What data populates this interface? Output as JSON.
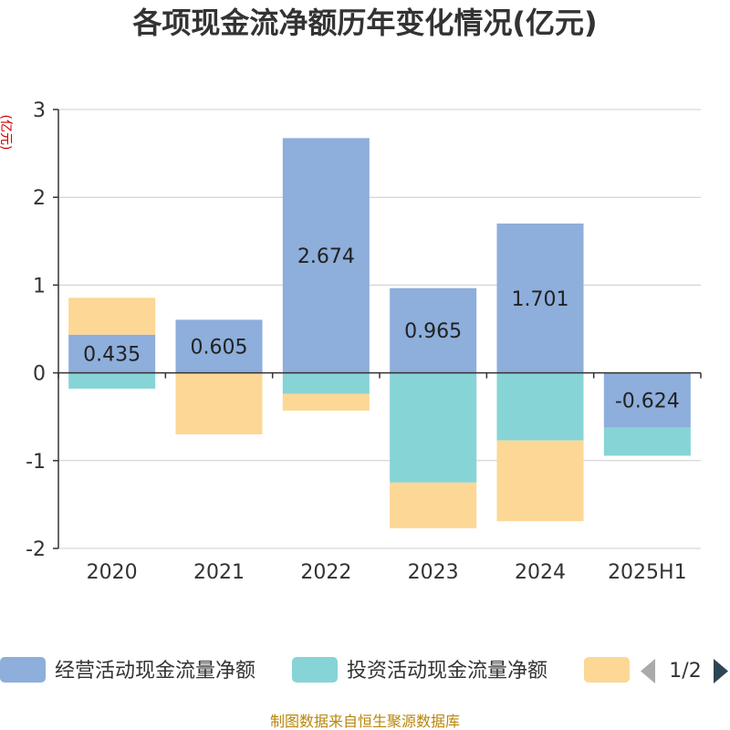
{
  "chart_data": {
    "type": "bar",
    "stacked": true,
    "title": "各项现金流净额历年变化情况(亿元)",
    "ylabel": "(亿元)",
    "categories": [
      "2020",
      "2021",
      "2022",
      "2023",
      "2024",
      "2025H1"
    ],
    "ylim": [
      -2,
      3
    ],
    "yticks": [
      "3",
      "2",
      "1",
      "0",
      "-1",
      "-2"
    ],
    "grid": true,
    "legend_position": "bottom",
    "series": [
      {
        "name": "经营活动现金流量净额",
        "color": "#8eaedb",
        "values": [
          0.435,
          0.605,
          2.674,
          0.965,
          1.701,
          -0.624
        ],
        "labels": [
          "0.435",
          "0.605",
          "2.674",
          "0.965",
          "1.701",
          "-0.624"
        ]
      },
      {
        "name": "投资活动现金流量净额",
        "color": "#86d4d6",
        "values": [
          -0.18,
          0,
          -0.24,
          -1.25,
          -0.77,
          -0.32
        ]
      },
      {
        "name": "",
        "color": "#fdd795",
        "values": [
          0.42,
          -0.7,
          -0.19,
          -0.52,
          -0.92,
          0
        ]
      }
    ]
  },
  "legend": {
    "page": "1/2"
  },
  "source": "制图数据来自恒生聚源数据库"
}
